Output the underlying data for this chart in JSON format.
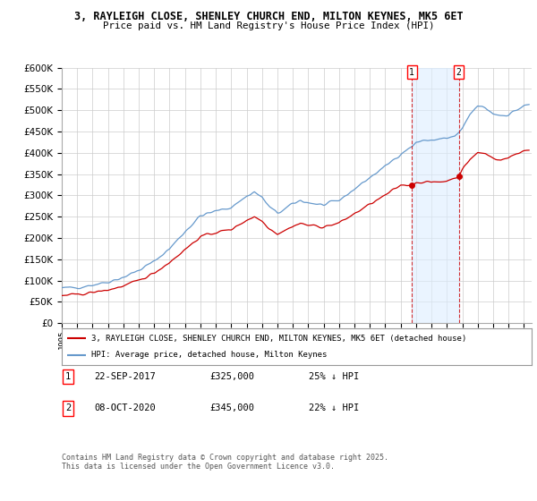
{
  "title_line1": "3, RAYLEIGH CLOSE, SHENLEY CHURCH END, MILTON KEYNES, MK5 6ET",
  "title_line2": "Price paid vs. HM Land Registry's House Price Index (HPI)",
  "legend_label_red": "3, RAYLEIGH CLOSE, SHENLEY CHURCH END, MILTON KEYNES, MK5 6ET (detached house)",
  "legend_label_blue": "HPI: Average price, detached house, Milton Keynes",
  "footer": "Contains HM Land Registry data © Crown copyright and database right 2025.\nThis data is licensed under the Open Government Licence v3.0.",
  "annotation1_label": "1",
  "annotation1_date": "22-SEP-2017",
  "annotation1_price": "£325,000",
  "annotation1_hpi": "25% ↓ HPI",
  "annotation2_label": "2",
  "annotation2_date": "08-OCT-2020",
  "annotation2_price": "£345,000",
  "annotation2_hpi": "22% ↓ HPI",
  "ylim": [
    0,
    600000
  ],
  "ytick_vals": [
    0,
    50000,
    100000,
    150000,
    200000,
    250000,
    300000,
    350000,
    400000,
    450000,
    500000,
    550000,
    600000
  ],
  "red_color": "#cc0000",
  "blue_color": "#6699cc",
  "blue_fill_color": "#ddeeff",
  "background_color": "#ffffff",
  "grid_color": "#cccccc",
  "sale1_x": 2017.727,
  "sale1_y": 325000,
  "sale2_x": 2020.769,
  "sale2_y": 345000,
  "xmin": 1995.0,
  "xmax": 2025.5
}
